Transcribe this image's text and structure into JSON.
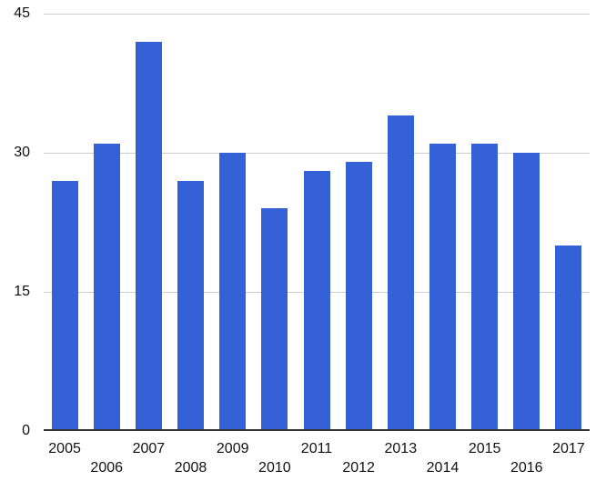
{
  "chart_data": {
    "type": "bar",
    "title": "",
    "xlabel": "",
    "ylabel": "",
    "categories": [
      "2005",
      "2006",
      "2007",
      "2008",
      "2009",
      "2010",
      "2011",
      "2012",
      "2013",
      "2014",
      "2015",
      "2016",
      "2017"
    ],
    "values": [
      27,
      31,
      42,
      27,
      30,
      24,
      28,
      29,
      34,
      31,
      31,
      30,
      20
    ],
    "ylim": [
      0,
      45
    ],
    "yticks": [
      0,
      15,
      30,
      45
    ],
    "grid": true,
    "legend_position": "none",
    "x_labels_staggered": true,
    "colors": {
      "bar": "#3462d6",
      "gridline": "#cccccc",
      "axis_line": "#333333",
      "text": "#111111",
      "background": "#ffffff"
    }
  }
}
